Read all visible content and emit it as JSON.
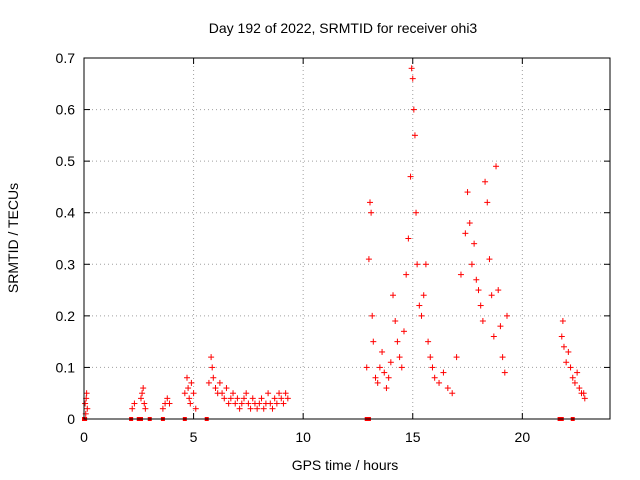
{
  "chart_data": {
    "type": "scatter",
    "title": "Day 192 of 2022, SRMTID for receiver ohi3",
    "xlabel": "GPS time / hours",
    "ylabel": "SRMTID / TECUs",
    "xlim": [
      0,
      24
    ],
    "ylim": [
      0,
      0.7
    ],
    "xticks": [
      0,
      5,
      10,
      15,
      20
    ],
    "yticks": [
      0,
      0.1,
      0.2,
      0.3,
      0.4,
      0.5,
      0.6,
      0.7
    ],
    "xtick_labels": [
      "0",
      "5",
      "10",
      "15",
      "20"
    ],
    "ytick_labels": [
      "0",
      "0.1",
      "0.2",
      "0.3",
      "0.4",
      "0.5",
      "0.6",
      "0.7"
    ],
    "grid": true,
    "marker": "+",
    "color": "#ff0000",
    "series": [
      {
        "name": "SRMTID",
        "points": [
          [
            0.05,
            0.03
          ],
          [
            0.1,
            0.04
          ],
          [
            0.12,
            0.05
          ],
          [
            0.15,
            0.02
          ],
          [
            0.08,
            0.01
          ],
          [
            2.2,
            0.02
          ],
          [
            2.3,
            0.03
          ],
          [
            2.6,
            0.04
          ],
          [
            2.65,
            0.05
          ],
          [
            2.7,
            0.06
          ],
          [
            2.75,
            0.03
          ],
          [
            2.8,
            0.02
          ],
          [
            3.6,
            0.02
          ],
          [
            3.7,
            0.03
          ],
          [
            3.8,
            0.04
          ],
          [
            3.9,
            0.03
          ],
          [
            4.6,
            0.05
          ],
          [
            4.7,
            0.08
          ],
          [
            4.75,
            0.06
          ],
          [
            4.8,
            0.04
          ],
          [
            4.85,
            0.03
          ],
          [
            4.9,
            0.07
          ],
          [
            5.0,
            0.05
          ],
          [
            5.1,
            0.02
          ],
          [
            5.7,
            0.07
          ],
          [
            5.8,
            0.12
          ],
          [
            5.85,
            0.1
          ],
          [
            5.9,
            0.08
          ],
          [
            6.0,
            0.06
          ],
          [
            6.1,
            0.05
          ],
          [
            6.2,
            0.07
          ],
          [
            6.3,
            0.05
          ],
          [
            6.4,
            0.04
          ],
          [
            6.5,
            0.06
          ],
          [
            6.6,
            0.03
          ],
          [
            6.7,
            0.04
          ],
          [
            6.8,
            0.05
          ],
          [
            6.9,
            0.03
          ],
          [
            7.0,
            0.04
          ],
          [
            7.1,
            0.02
          ],
          [
            7.2,
            0.03
          ],
          [
            7.3,
            0.04
          ],
          [
            7.4,
            0.05
          ],
          [
            7.5,
            0.03
          ],
          [
            7.6,
            0.02
          ],
          [
            7.7,
            0.04
          ],
          [
            7.8,
            0.03
          ],
          [
            7.9,
            0.02
          ],
          [
            8.0,
            0.03
          ],
          [
            8.1,
            0.04
          ],
          [
            8.2,
            0.02
          ],
          [
            8.3,
            0.03
          ],
          [
            8.4,
            0.05
          ],
          [
            8.5,
            0.03
          ],
          [
            8.6,
            0.02
          ],
          [
            8.7,
            0.04
          ],
          [
            8.8,
            0.03
          ],
          [
            8.9,
            0.05
          ],
          [
            9.0,
            0.04
          ],
          [
            9.1,
            0.03
          ],
          [
            9.2,
            0.05
          ],
          [
            9.3,
            0.04
          ],
          [
            12.9,
            0.1
          ],
          [
            13.0,
            0.31
          ],
          [
            13.05,
            0.42
          ],
          [
            13.1,
            0.4
          ],
          [
            13.15,
            0.2
          ],
          [
            13.2,
            0.15
          ],
          [
            13.3,
            0.08
          ],
          [
            13.4,
            0.07
          ],
          [
            13.5,
            0.1
          ],
          [
            13.6,
            0.13
          ],
          [
            13.7,
            0.09
          ],
          [
            13.8,
            0.06
          ],
          [
            13.9,
            0.08
          ],
          [
            14.0,
            0.11
          ],
          [
            14.1,
            0.24
          ],
          [
            14.2,
            0.19
          ],
          [
            14.3,
            0.15
          ],
          [
            14.4,
            0.12
          ],
          [
            14.5,
            0.1
          ],
          [
            14.6,
            0.17
          ],
          [
            14.7,
            0.28
          ],
          [
            14.8,
            0.35
          ],
          [
            14.9,
            0.47
          ],
          [
            14.95,
            0.68
          ],
          [
            15.0,
            0.66
          ],
          [
            15.05,
            0.6
          ],
          [
            15.1,
            0.55
          ],
          [
            15.15,
            0.4
          ],
          [
            15.2,
            0.3
          ],
          [
            15.3,
            0.22
          ],
          [
            15.4,
            0.2
          ],
          [
            15.5,
            0.24
          ],
          [
            15.6,
            0.3
          ],
          [
            15.7,
            0.15
          ],
          [
            15.8,
            0.12
          ],
          [
            15.9,
            0.1
          ],
          [
            16.0,
            0.08
          ],
          [
            16.2,
            0.07
          ],
          [
            16.4,
            0.09
          ],
          [
            16.6,
            0.06
          ],
          [
            16.8,
            0.05
          ],
          [
            17.0,
            0.12
          ],
          [
            17.2,
            0.28
          ],
          [
            17.4,
            0.36
          ],
          [
            17.5,
            0.44
          ],
          [
            17.6,
            0.38
          ],
          [
            17.7,
            0.3
          ],
          [
            17.8,
            0.34
          ],
          [
            17.9,
            0.27
          ],
          [
            18.0,
            0.25
          ],
          [
            18.1,
            0.22
          ],
          [
            18.2,
            0.19
          ],
          [
            18.3,
            0.46
          ],
          [
            18.4,
            0.42
          ],
          [
            18.5,
            0.31
          ],
          [
            18.6,
            0.24
          ],
          [
            18.7,
            0.16
          ],
          [
            18.8,
            0.49
          ],
          [
            18.9,
            0.25
          ],
          [
            19.0,
            0.18
          ],
          [
            19.1,
            0.12
          ],
          [
            19.2,
            0.09
          ],
          [
            19.3,
            0.2
          ],
          [
            21.8,
            0.16
          ],
          [
            21.85,
            0.19
          ],
          [
            21.9,
            0.14
          ],
          [
            22.0,
            0.11
          ],
          [
            22.1,
            0.13
          ],
          [
            22.2,
            0.1
          ],
          [
            22.3,
            0.08
          ],
          [
            22.4,
            0.07
          ],
          [
            22.5,
            0.09
          ],
          [
            22.6,
            0.06
          ],
          [
            22.7,
            0.05
          ],
          [
            22.8,
            0.05
          ],
          [
            22.85,
            0.04
          ]
        ]
      }
    ],
    "zero_markers_x": [
      0.0,
      0.05,
      2.15,
      2.5,
      2.6,
      3.0,
      3.6,
      4.6,
      5.6,
      12.9,
      13.0,
      21.7,
      21.8,
      22.3
    ]
  }
}
